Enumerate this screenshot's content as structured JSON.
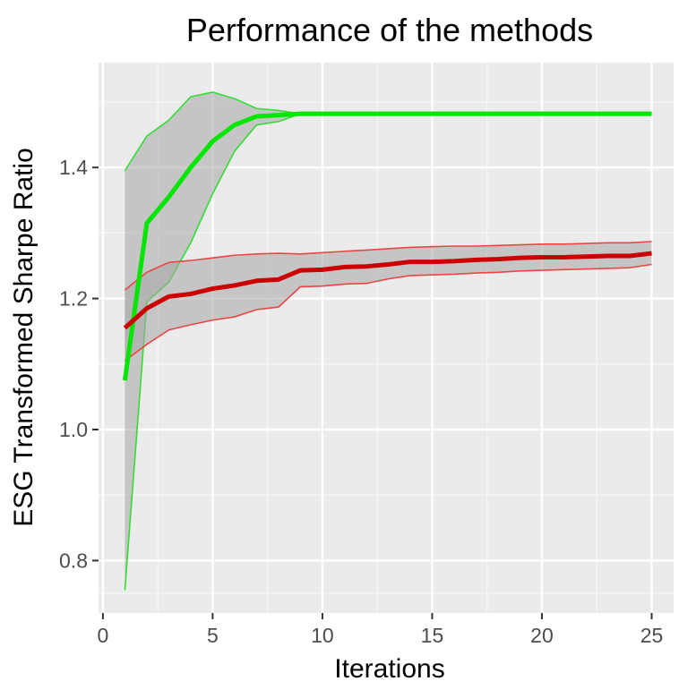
{
  "chart_data": {
    "type": "line",
    "title": "Performance of the methods",
    "xlabel": "Iterations",
    "ylabel": "ESG Transformed Sharpe Ratio",
    "xlim": [
      -0.2,
      26.0
    ],
    "ylim": [
      0.72,
      1.56
    ],
    "x_ticks": [
      0,
      5,
      10,
      15,
      20,
      25
    ],
    "y_ticks": [
      0.8,
      1.0,
      1.2,
      1.4
    ],
    "x_tick_labels": [
      "0",
      "5",
      "10",
      "15",
      "20",
      "25"
    ],
    "y_tick_labels": [
      "0.8",
      "1.0",
      "1.2",
      "1.4"
    ],
    "grid": true,
    "background": "#ebebeb",
    "band_fill": "#a6a6a6",
    "series": [
      {
        "color": "#00e600",
        "band_color": "#33dd33",
        "x": [
          1,
          2,
          3,
          4,
          5,
          6,
          7,
          8,
          9,
          10,
          11,
          12,
          13,
          14,
          15,
          16,
          17,
          18,
          19,
          20,
          21,
          22,
          23,
          24,
          25
        ],
        "y": [
          1.075,
          1.315,
          1.355,
          1.4,
          1.44,
          1.465,
          1.478,
          1.48,
          1.482,
          1.482,
          1.482,
          1.482,
          1.482,
          1.482,
          1.482,
          1.482,
          1.482,
          1.482,
          1.482,
          1.482,
          1.482,
          1.482,
          1.482,
          1.482,
          1.482
        ],
        "lower": [
          0.755,
          1.195,
          1.225,
          1.285,
          1.36,
          1.425,
          1.465,
          1.47,
          1.482,
          1.482,
          1.482,
          1.482,
          1.482,
          1.482,
          1.482,
          1.482,
          1.482,
          1.482,
          1.482,
          1.482,
          1.482,
          1.482,
          1.482,
          1.482,
          1.482
        ],
        "upper": [
          1.395,
          1.448,
          1.472,
          1.508,
          1.515,
          1.505,
          1.49,
          1.487,
          1.482,
          1.482,
          1.482,
          1.482,
          1.482,
          1.482,
          1.482,
          1.482,
          1.482,
          1.482,
          1.482,
          1.482,
          1.482,
          1.482,
          1.482,
          1.482,
          1.482
        ]
      },
      {
        "color": "#cc0000",
        "band_color": "#ee4444",
        "x": [
          1,
          2,
          3,
          4,
          5,
          6,
          7,
          8,
          9,
          10,
          11,
          12,
          13,
          14,
          15,
          16,
          17,
          18,
          19,
          20,
          21,
          22,
          23,
          24,
          25
        ],
        "y": [
          1.155,
          1.185,
          1.203,
          1.207,
          1.215,
          1.22,
          1.227,
          1.229,
          1.243,
          1.244,
          1.248,
          1.249,
          1.252,
          1.256,
          1.256,
          1.257,
          1.259,
          1.26,
          1.262,
          1.263,
          1.263,
          1.264,
          1.265,
          1.265,
          1.269
        ],
        "lower": [
          1.105,
          1.13,
          1.152,
          1.16,
          1.167,
          1.172,
          1.183,
          1.187,
          1.218,
          1.219,
          1.222,
          1.223,
          1.23,
          1.235,
          1.236,
          1.237,
          1.239,
          1.24,
          1.242,
          1.243,
          1.244,
          1.245,
          1.246,
          1.247,
          1.252
        ],
        "upper": [
          1.213,
          1.24,
          1.255,
          1.258,
          1.262,
          1.266,
          1.268,
          1.269,
          1.268,
          1.27,
          1.272,
          1.274,
          1.276,
          1.278,
          1.279,
          1.28,
          1.28,
          1.281,
          1.282,
          1.283,
          1.283,
          1.284,
          1.285,
          1.285,
          1.287
        ]
      }
    ]
  }
}
